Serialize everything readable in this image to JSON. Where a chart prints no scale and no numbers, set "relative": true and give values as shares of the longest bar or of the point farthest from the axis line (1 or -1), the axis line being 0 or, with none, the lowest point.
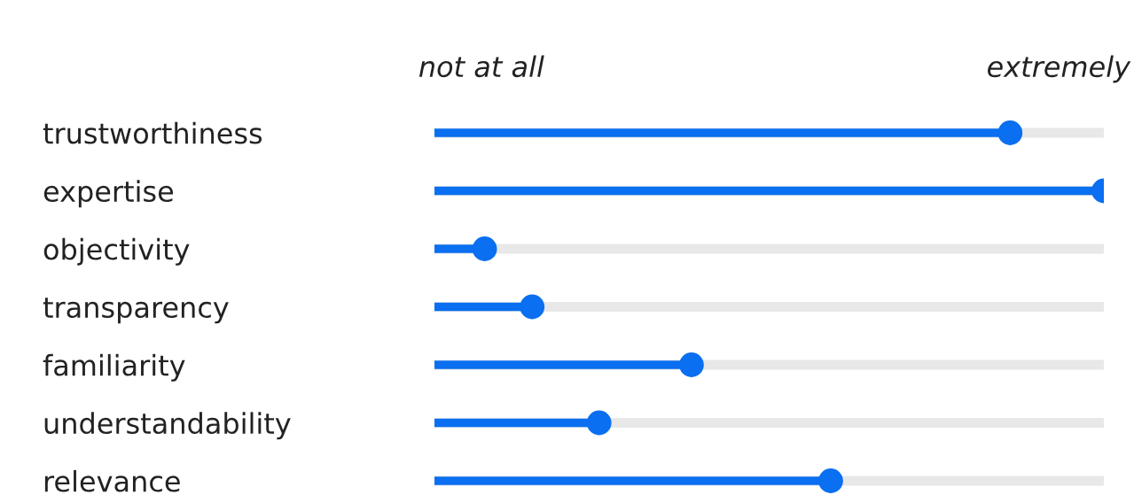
{
  "chart_data": {
    "type": "lollipop",
    "orientation": "horizontal",
    "relative": true,
    "categories": [
      "trustworthiness",
      "expertise",
      "objectivity",
      "transparency",
      "familiarity",
      "understandability",
      "relevance"
    ],
    "values": [
      0.86,
      1,
      0.075,
      0.146,
      0.384,
      0.246,
      0.592
    ],
    "color": "#0a6ff0",
    "marker": "circle",
    "grid": "y",
    "annotations": [
      "not at all",
      "extremely"
    ]
  }
}
